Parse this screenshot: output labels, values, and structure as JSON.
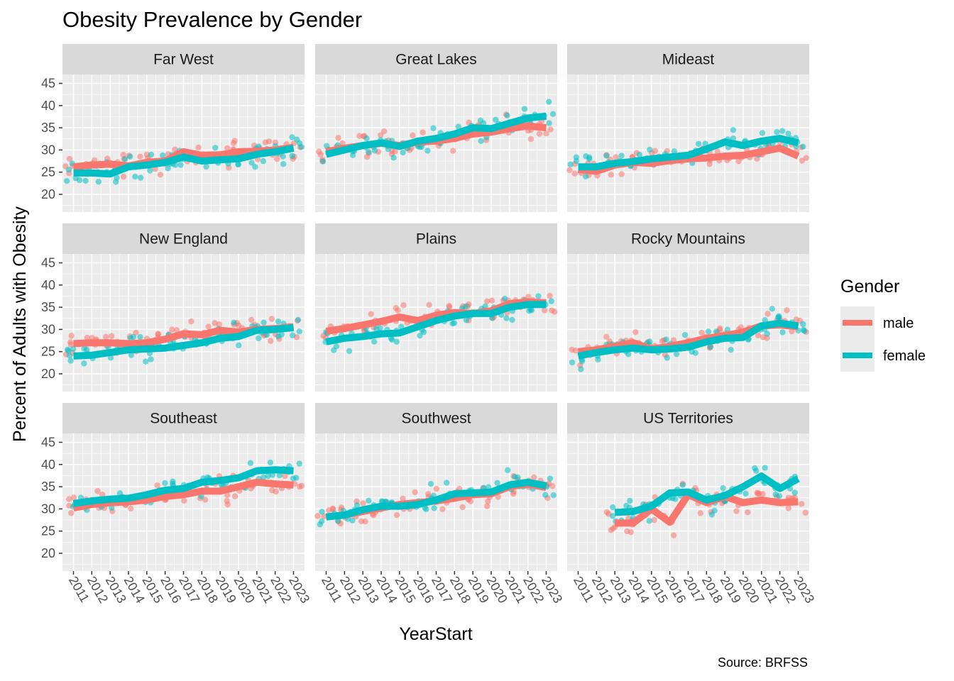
{
  "chart_data": {
    "type": "line",
    "title": "Obesity Prevalence by Gender",
    "xlabel": "YearStart",
    "ylabel": "Percent of Adults with Obesity",
    "caption": "Source: BRFSS",
    "legend_title": "Gender",
    "legend_position": "right",
    "ylim": [
      16,
      47
    ],
    "yticks": [
      20,
      25,
      30,
      35,
      40,
      45
    ],
    "xticks": [
      2011,
      2012,
      2013,
      2014,
      2015,
      2016,
      2017,
      2018,
      2019,
      2020,
      2021,
      2022,
      2023
    ],
    "grid": true,
    "colors": {
      "male": "#F8766D",
      "female": "#00BFC4",
      "panel_bg": "#EBEBEB",
      "strip_bg": "#D9D9D9"
    },
    "series_names": [
      "male",
      "female"
    ],
    "panels": [
      {
        "name": "Far West",
        "male": {
          "x": [
            2011,
            2012,
            2013,
            2014,
            2015,
            2016,
            2017,
            2018,
            2019,
            2020,
            2021,
            2022,
            2023
          ],
          "y": [
            26.2,
            26.6,
            26.8,
            26.4,
            27.2,
            27.5,
            29.6,
            28.8,
            28.9,
            29.6,
            29.7,
            30.0,
            30.6
          ]
        },
        "female": {
          "x": [
            2011,
            2012,
            2013,
            2014,
            2015,
            2016,
            2017,
            2018,
            2019,
            2020,
            2021,
            2022,
            2023
          ],
          "y": [
            24.8,
            24.8,
            24.6,
            26.2,
            26.6,
            27.2,
            28.4,
            27.5,
            27.8,
            28.0,
            29.0,
            29.6,
            30.4
          ]
        }
      },
      {
        "name": "Great Lakes",
        "male": {
          "x": [
            2011,
            2012,
            2013,
            2014,
            2015,
            2016,
            2017,
            2018,
            2019,
            2020,
            2021,
            2022,
            2023
          ],
          "y": [
            29.6,
            30.4,
            31.0,
            31.5,
            31.0,
            31.8,
            32.0,
            32.6,
            33.6,
            34.0,
            34.8,
            35.4,
            35.0
          ]
        },
        "female": {
          "x": [
            2011,
            2012,
            2013,
            2014,
            2015,
            2016,
            2017,
            2018,
            2019,
            2020,
            2021,
            2022,
            2023
          ],
          "y": [
            29.0,
            30.0,
            31.0,
            31.6,
            30.8,
            32.0,
            32.6,
            33.6,
            35.0,
            34.8,
            36.0,
            37.2,
            37.6
          ]
        }
      },
      {
        "name": "Mideast",
        "male": {
          "x": [
            2011,
            2012,
            2013,
            2014,
            2015,
            2016,
            2017,
            2018,
            2019,
            2020,
            2021,
            2022,
            2023
          ],
          "y": [
            25.6,
            25.2,
            26.6,
            27.2,
            27.0,
            27.6,
            28.0,
            28.2,
            28.6,
            28.8,
            29.6,
            30.4,
            28.6
          ]
        },
        "female": {
          "x": [
            2011,
            2012,
            2013,
            2014,
            2015,
            2016,
            2017,
            2018,
            2019,
            2020,
            2021,
            2022,
            2023
          ],
          "y": [
            26.2,
            26.2,
            27.0,
            27.4,
            28.0,
            28.4,
            28.8,
            30.2,
            31.8,
            31.0,
            32.0,
            32.6,
            31.6
          ]
        }
      },
      {
        "name": "New England",
        "male": {
          "x": [
            2011,
            2012,
            2013,
            2014,
            2015,
            2016,
            2017,
            2018,
            2019,
            2020,
            2021,
            2022,
            2023
          ],
          "y": [
            26.8,
            27.0,
            27.0,
            26.8,
            27.0,
            27.8,
            29.0,
            28.8,
            29.8,
            29.4,
            30.0,
            30.2,
            30.6
          ]
        },
        "female": {
          "x": [
            2011,
            2012,
            2013,
            2014,
            2015,
            2016,
            2017,
            2018,
            2019,
            2020,
            2021,
            2022,
            2023
          ],
          "y": [
            24.0,
            24.2,
            24.8,
            25.4,
            25.6,
            25.8,
            26.4,
            27.0,
            28.0,
            28.4,
            29.8,
            30.0,
            30.4
          ]
        }
      },
      {
        "name": "Plains",
        "male": {
          "x": [
            2011,
            2012,
            2013,
            2014,
            2015,
            2016,
            2017,
            2018,
            2019,
            2020,
            2021,
            2022,
            2023
          ],
          "y": [
            29.6,
            30.2,
            31.0,
            31.8,
            32.8,
            32.0,
            33.2,
            33.8,
            33.6,
            34.2,
            35.8,
            36.2,
            36.0
          ]
        },
        "female": {
          "x": [
            2011,
            2012,
            2013,
            2014,
            2015,
            2016,
            2017,
            2018,
            2019,
            2020,
            2021,
            2022,
            2023
          ],
          "y": [
            27.2,
            28.0,
            28.4,
            29.0,
            29.2,
            30.6,
            32.0,
            33.0,
            33.6,
            33.6,
            35.0,
            35.6,
            35.6
          ]
        }
      },
      {
        "name": "Rocky Mountains",
        "male": {
          "x": [
            2011,
            2012,
            2013,
            2014,
            2015,
            2016,
            2017,
            2018,
            2019,
            2020,
            2021,
            2022,
            2023
          ],
          "y": [
            25.0,
            25.4,
            26.2,
            27.0,
            25.6,
            26.2,
            27.0,
            28.0,
            28.6,
            29.4,
            30.8,
            31.0,
            30.6
          ]
        },
        "female": {
          "x": [
            2011,
            2012,
            2013,
            2014,
            2015,
            2016,
            2017,
            2018,
            2019,
            2020,
            2021,
            2022,
            2023
          ],
          "y": [
            24.0,
            24.8,
            25.4,
            25.8,
            25.4,
            25.6,
            26.0,
            27.2,
            28.0,
            28.2,
            30.8,
            31.4,
            30.8
          ]
        }
      },
      {
        "name": "Southeast",
        "male": {
          "x": [
            2011,
            2012,
            2013,
            2014,
            2015,
            2016,
            2017,
            2018,
            2019,
            2020,
            2021,
            2022,
            2023
          ],
          "y": [
            30.2,
            31.0,
            31.4,
            31.6,
            32.0,
            32.8,
            33.2,
            34.0,
            34.0,
            35.0,
            36.0,
            35.6,
            35.4
          ]
        },
        "female": {
          "x": [
            2011,
            2012,
            2013,
            2014,
            2015,
            2016,
            2017,
            2018,
            2019,
            2020,
            2021,
            2022,
            2023
          ],
          "y": [
            31.2,
            31.8,
            32.2,
            32.4,
            33.2,
            34.2,
            34.6,
            36.0,
            36.4,
            37.0,
            38.6,
            38.8,
            38.6
          ]
        }
      },
      {
        "name": "Southwest",
        "male": {
          "x": [
            2011,
            2012,
            2013,
            2014,
            2015,
            2016,
            2017,
            2018,
            2019,
            2020,
            2021,
            2022,
            2023
          ],
          "y": [
            28.2,
            28.6,
            29.4,
            30.2,
            31.0,
            31.4,
            31.8,
            32.4,
            33.2,
            33.4,
            35.0,
            35.6,
            34.8
          ]
        },
        "female": {
          "x": [
            2011,
            2012,
            2013,
            2014,
            2015,
            2016,
            2017,
            2018,
            2019,
            2020,
            2021,
            2022,
            2023
          ],
          "y": [
            28.2,
            28.6,
            29.8,
            30.6,
            30.6,
            31.0,
            32.0,
            33.4,
            33.6,
            33.8,
            35.4,
            36.0,
            35.2
          ]
        }
      },
      {
        "name": "US Territories",
        "male": {
          "x": [
            2013,
            2014,
            2015,
            2016,
            2017,
            2018,
            2019,
            2020,
            2021,
            2022,
            2023
          ],
          "y": [
            26.8,
            26.8,
            30.0,
            27.0,
            33.2,
            31.4,
            32.8,
            31.4,
            32.0,
            31.4,
            31.6
          ]
        },
        "female": {
          "x": [
            2013,
            2014,
            2015,
            2016,
            2017,
            2018,
            2019,
            2020,
            2021,
            2022,
            2023
          ],
          "y": [
            29.2,
            29.4,
            30.6,
            33.6,
            33.8,
            32.0,
            33.0,
            35.0,
            37.4,
            34.6,
            36.8
          ]
        }
      }
    ]
  }
}
